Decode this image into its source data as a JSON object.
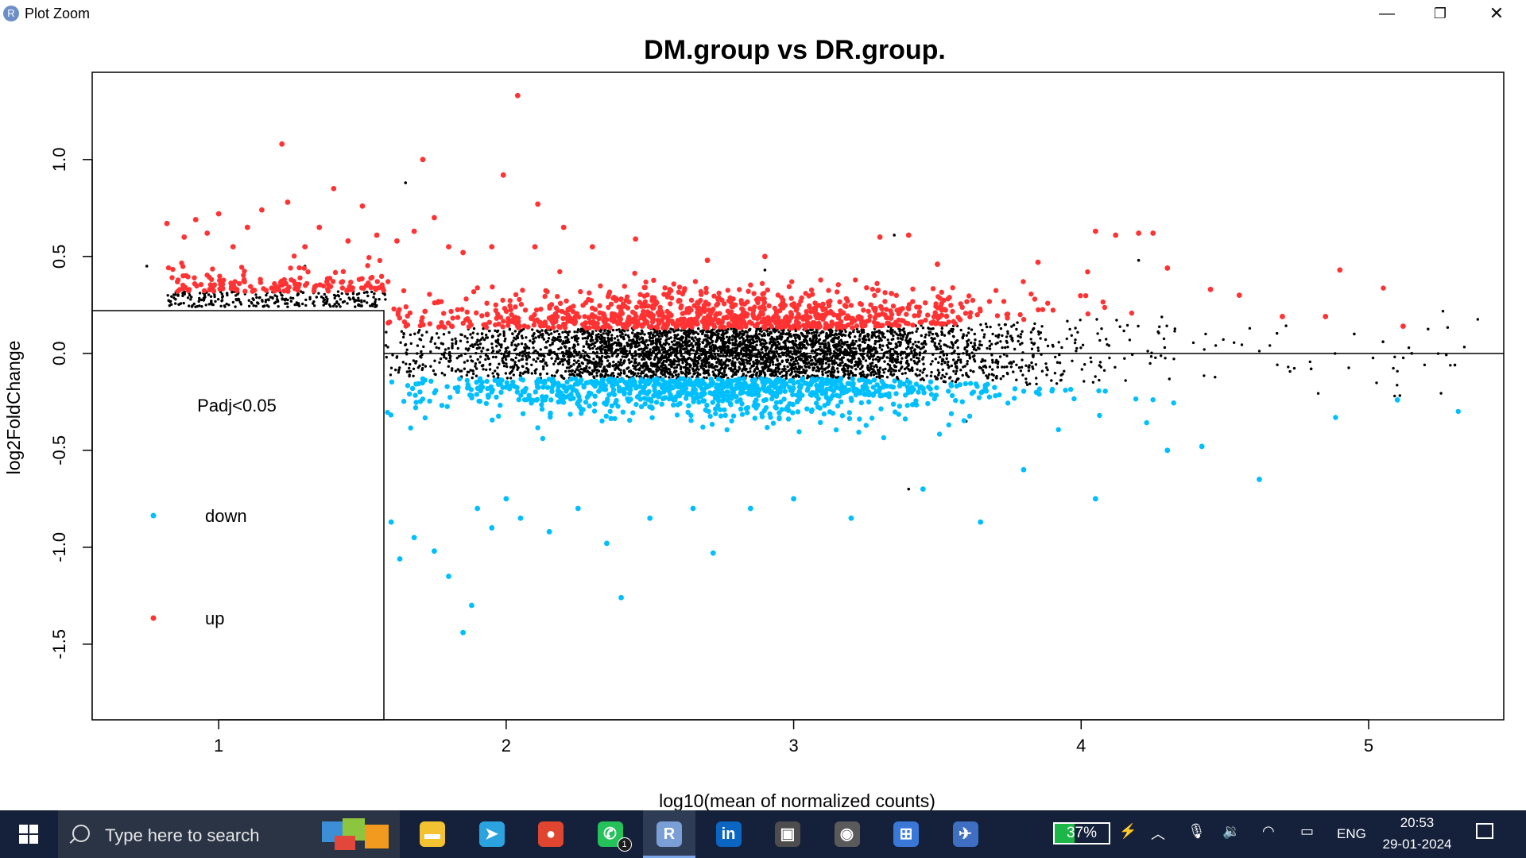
{
  "window": {
    "title": "Plot Zoom",
    "app_icon_letter": "R",
    "minimize": "—",
    "maximize": "❐",
    "close": "✕"
  },
  "chart_data": {
    "type": "scatter",
    "title": "DM.group vs DR.group.",
    "xlabel": "log10(mean of normalized counts)",
    "ylabel": "log2FoldChange",
    "xlim": [
      0.56,
      5.47
    ],
    "ylim": [
      -1.89,
      1.45
    ],
    "x_ticks": [
      1,
      2,
      3,
      4,
      5
    ],
    "x_tick_labels": [
      "1",
      "2",
      "3",
      "4",
      "5"
    ],
    "y_ticks": [
      1.0,
      0.5,
      0.0,
      -0.5,
      -1.0,
      -1.5
    ],
    "y_tick_labels": [
      "1.0",
      "0.5",
      "0.0",
      "-0.5",
      "-1.0",
      "-1.5"
    ],
    "reference_line_y": 0,
    "series": [
      {
        "name": "up",
        "color": "#ff3333",
        "points": [
          [
            0.82,
            0.67
          ],
          [
            0.88,
            0.6
          ],
          [
            0.92,
            0.69
          ],
          [
            0.96,
            0.62
          ],
          [
            1.0,
            0.72
          ],
          [
            1.05,
            0.55
          ],
          [
            1.1,
            0.65
          ],
          [
            1.15,
            0.74
          ],
          [
            1.22,
            1.08
          ],
          [
            1.24,
            0.78
          ],
          [
            1.3,
            0.55
          ],
          [
            1.35,
            0.65
          ],
          [
            1.4,
            0.85
          ],
          [
            1.45,
            0.58
          ],
          [
            1.5,
            0.76
          ],
          [
            1.55,
            0.61
          ],
          [
            1.62,
            0.58
          ],
          [
            1.68,
            0.63
          ],
          [
            1.71,
            1.0
          ],
          [
            1.75,
            0.7
          ],
          [
            1.8,
            0.55
          ],
          [
            1.85,
            0.52
          ],
          [
            1.95,
            0.55
          ],
          [
            1.99,
            0.92
          ],
          [
            2.04,
            1.33
          ],
          [
            2.1,
            0.55
          ],
          [
            2.11,
            0.77
          ],
          [
            2.2,
            0.65
          ],
          [
            2.3,
            0.55
          ],
          [
            2.45,
            0.59
          ],
          [
            2.7,
            0.48
          ],
          [
            2.9,
            0.5
          ],
          [
            3.3,
            0.6
          ],
          [
            3.4,
            0.61
          ],
          [
            3.5,
            0.46
          ],
          [
            3.85,
            0.47
          ],
          [
            4.05,
            0.63
          ],
          [
            4.12,
            0.61
          ],
          [
            4.2,
            0.62
          ],
          [
            4.25,
            0.62
          ],
          [
            4.3,
            0.44
          ],
          [
            4.45,
            0.33
          ],
          [
            4.55,
            0.3
          ],
          [
            4.7,
            0.19
          ],
          [
            4.85,
            0.19
          ],
          [
            4.9,
            0.43
          ],
          [
            5.12,
            0.14
          ]
        ]
      },
      {
        "name": "down",
        "color": "#00bfff",
        "points": [
          [
            1.6,
            -0.87
          ],
          [
            1.63,
            -1.06
          ],
          [
            1.68,
            -0.95
          ],
          [
            1.75,
            -1.02
          ],
          [
            1.8,
            -1.15
          ],
          [
            1.85,
            -1.44
          ],
          [
            1.88,
            -1.3
          ],
          [
            1.9,
            -0.8
          ],
          [
            1.95,
            -0.9
          ],
          [
            2.0,
            -0.75
          ],
          [
            2.05,
            -0.85
          ],
          [
            2.15,
            -0.92
          ],
          [
            2.25,
            -0.8
          ],
          [
            2.35,
            -0.98
          ],
          [
            2.4,
            -1.26
          ],
          [
            2.5,
            -0.85
          ],
          [
            2.65,
            -0.8
          ],
          [
            2.72,
            -1.03
          ],
          [
            2.85,
            -0.8
          ],
          [
            3.0,
            -0.75
          ],
          [
            3.2,
            -0.85
          ],
          [
            3.45,
            -0.7
          ],
          [
            3.65,
            -0.87
          ],
          [
            3.8,
            -0.6
          ],
          [
            4.05,
            -0.75
          ],
          [
            4.3,
            -0.5
          ],
          [
            4.42,
            -0.48
          ],
          [
            4.62,
            -0.65
          ],
          [
            5.1,
            -0.24
          ]
        ]
      },
      {
        "name": "ns",
        "color": "#000000",
        "points": [
          [
            0.75,
            0.45
          ],
          [
            1.3,
            0.45
          ],
          [
            1.65,
            0.88
          ],
          [
            2.9,
            0.43
          ],
          [
            3.35,
            0.61
          ],
          [
            4.2,
            0.48
          ],
          [
            4.95,
            0.1
          ],
          [
            5.05,
            0.06
          ],
          [
            5.15,
            0.0
          ],
          [
            5.3,
            -0.06
          ],
          [
            4.8,
            -0.08
          ],
          [
            3.4,
            -0.7
          ],
          [
            3.6,
            -0.35
          ]
        ]
      }
    ],
    "legend": {
      "title": "Padj<0.05",
      "items": [
        {
          "label": "down",
          "color": "#00bfff"
        },
        {
          "label": "up",
          "color": "#ff3333"
        }
      ]
    }
  },
  "taskbar": {
    "search_placeholder": "Type here to search",
    "apps": [
      {
        "name": "file-explorer",
        "glyph": "▬",
        "color": "#f2c230"
      },
      {
        "name": "telegram",
        "glyph": "➤",
        "color": "#2aa3df"
      },
      {
        "name": "chrome",
        "glyph": "●",
        "color": "#e0452f"
      },
      {
        "name": "whatsapp",
        "glyph": "✆",
        "color": "#25c15a",
        "badge": "1"
      },
      {
        "name": "r-gui",
        "glyph": "R",
        "color": "#7a9fd6"
      },
      {
        "name": "linkedin",
        "glyph": "in",
        "color": "#0a66c2"
      },
      {
        "name": "media-app",
        "glyph": "▣",
        "color": "#4d4d4d"
      },
      {
        "name": "webcam-app",
        "glyph": "◉",
        "color": "#5a5a5a"
      },
      {
        "name": "microsoft-store",
        "glyph": "⊞",
        "color": "#3a78d8"
      },
      {
        "name": "bird-app",
        "glyph": "✈",
        "color": "#3e6fc2"
      }
    ],
    "battery_percent": "37%",
    "battery_level": 0.37,
    "language": "ENG",
    "time": "20:53",
    "date": "29-01-2024"
  }
}
